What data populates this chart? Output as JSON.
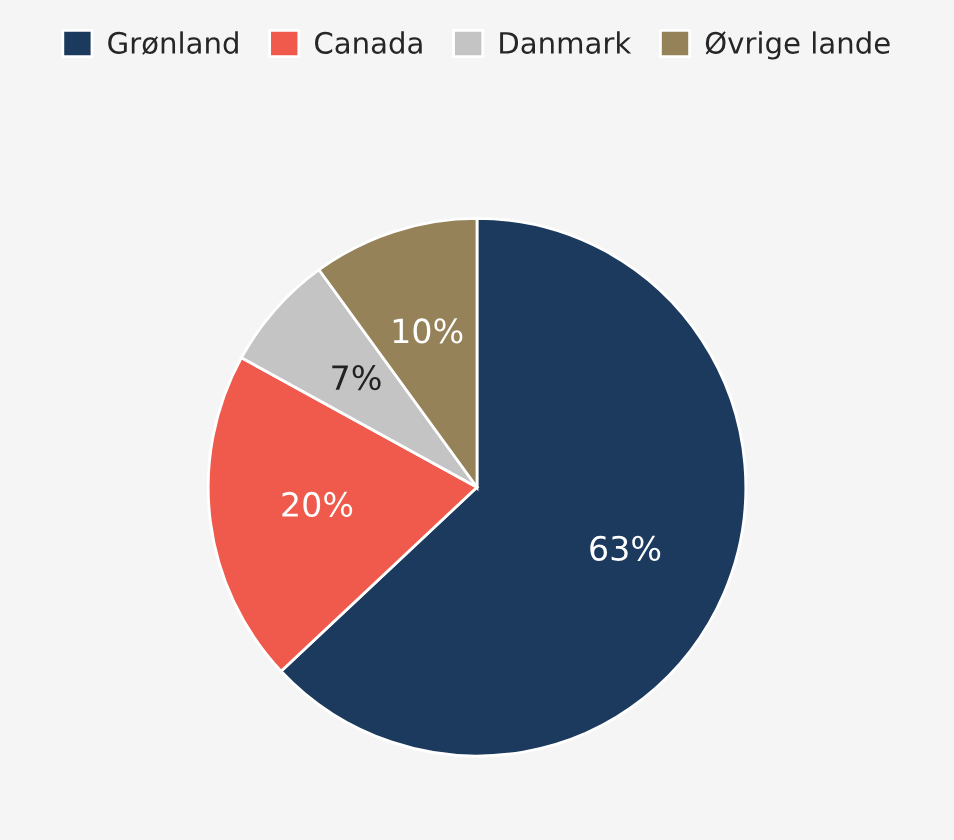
{
  "chart_data": {
    "type": "pie",
    "categories": [
      "Grønland",
      "Canada",
      "Danmark",
      "Øvrige lande"
    ],
    "values": [
      63,
      20,
      7,
      10
    ],
    "value_labels": [
      "63%",
      "20%",
      "7%",
      "10%"
    ],
    "colors": [
      "#1c3a5e",
      "#ef5a4c",
      "#c4c4c4",
      "#958258"
    ],
    "legend": "top"
  }
}
